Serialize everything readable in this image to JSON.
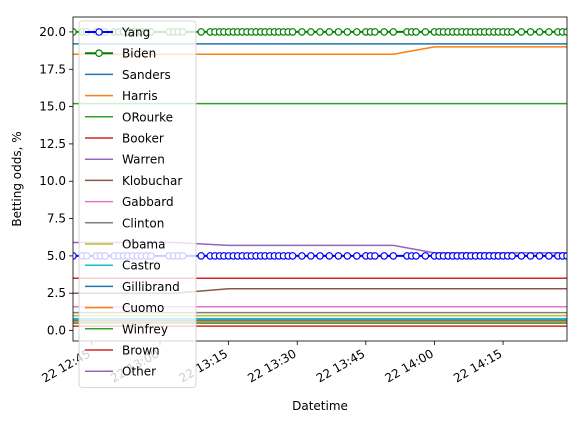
{
  "chart_data": {
    "type": "line",
    "xlabel": "Datetime",
    "ylabel": "Betting odds, %",
    "ylim": [
      -0.7,
      21
    ],
    "xlim": [
      "2019-xx-22 12:41",
      "2019-xx-22 14:30"
    ],
    "x_ticks": [
      {
        "t": 12.75,
        "label": "22 12:45"
      },
      {
        "t": 13.0,
        "label": "22 13:00"
      },
      {
        "t": 13.25,
        "label": "22 13:15"
      },
      {
        "t": 13.5,
        "label": "22 13:30"
      },
      {
        "t": 13.75,
        "label": "22 13:45"
      },
      {
        "t": 14.0,
        "label": "22 14:00"
      },
      {
        "t": 14.25,
        "label": "22 14:15"
      }
    ],
    "y_ticks": [
      "0.0",
      "2.5",
      "5.0",
      "7.5",
      "10.0",
      "12.5",
      "15.0",
      "17.5",
      "20.0"
    ],
    "legend_position": "upper-left",
    "markers_t": [
      12.683,
      12.717,
      12.733,
      12.767,
      12.783,
      12.8,
      12.833,
      12.85,
      12.867,
      12.883,
      12.9,
      12.917,
      12.933,
      12.95,
      12.967,
      13.033,
      13.05,
      13.067,
      13.083,
      13.15,
      13.183,
      13.2,
      13.217,
      13.233,
      13.25,
      13.267,
      13.283,
      13.3,
      13.317,
      13.333,
      13.35,
      13.367,
      13.383,
      13.4,
      13.417,
      13.433,
      13.45,
      13.467,
      13.483,
      13.517,
      13.55,
      13.583,
      13.617,
      13.65,
      13.683,
      13.717,
      13.75,
      13.767,
      13.783,
      13.817,
      13.85,
      13.9,
      13.917,
      13.933,
      13.967,
      14.0,
      14.017,
      14.033,
      14.05,
      14.067,
      14.083,
      14.1,
      14.117,
      14.133,
      14.15,
      14.167,
      14.183,
      14.2,
      14.217,
      14.233,
      14.25,
      14.267,
      14.283,
      14.317,
      14.35,
      14.383,
      14.417,
      14.45,
      14.467,
      14.483
    ],
    "series": [
      {
        "name": "Yang",
        "color": "#0000ff",
        "lw": 2,
        "marker": true,
        "points": [
          [
            12.683,
            5.0
          ],
          [
            14.483,
            5.0
          ]
        ]
      },
      {
        "name": "Biden",
        "color": "#008000",
        "lw": 2,
        "marker": true,
        "points": [
          [
            12.683,
            20.0
          ],
          [
            14.483,
            20.0
          ]
        ]
      },
      {
        "name": "Sanders",
        "color": "#1f77b4",
        "lw": 1.5,
        "points": [
          [
            12.683,
            19.2
          ],
          [
            14.483,
            19.2
          ]
        ]
      },
      {
        "name": "Harris",
        "color": "#ff7f0e",
        "lw": 1.5,
        "points": [
          [
            12.683,
            18.5
          ],
          [
            13.85,
            18.5
          ],
          [
            14.0,
            19.0
          ],
          [
            14.483,
            19.0
          ]
        ]
      },
      {
        "name": "ORourke",
        "color": "#2ca02c",
        "lw": 1.5,
        "points": [
          [
            12.683,
            15.2
          ],
          [
            14.483,
            15.2
          ]
        ]
      },
      {
        "name": "Booker",
        "color": "#d62728",
        "lw": 1.5,
        "points": [
          [
            12.683,
            3.5
          ],
          [
            14.483,
            3.5
          ]
        ]
      },
      {
        "name": "Warren",
        "color": "#9467bd",
        "lw": 1.5,
        "points": [
          [
            12.683,
            5.9
          ],
          [
            13.05,
            5.9
          ],
          [
            13.25,
            5.7
          ],
          [
            13.85,
            5.7
          ],
          [
            14.0,
            5.2
          ],
          [
            14.483,
            5.2
          ]
        ]
      },
      {
        "name": "Klobuchar",
        "color": "#8c564b",
        "lw": 1.5,
        "points": [
          [
            12.683,
            2.5
          ],
          [
            13.05,
            2.5
          ],
          [
            13.25,
            2.8
          ],
          [
            14.483,
            2.8
          ]
        ]
      },
      {
        "name": "Gabbard",
        "color": "#e377c2",
        "lw": 1.5,
        "points": [
          [
            12.683,
            1.6
          ],
          [
            14.483,
            1.6
          ]
        ]
      },
      {
        "name": "Clinton",
        "color": "#7f7f7f",
        "lw": 1.5,
        "points": [
          [
            12.683,
            1.2
          ],
          [
            14.483,
            1.2
          ]
        ]
      },
      {
        "name": "Obama",
        "color": "#bcbd22",
        "lw": 1.5,
        "points": [
          [
            12.683,
            1.0
          ],
          [
            14.483,
            1.0
          ]
        ]
      },
      {
        "name": "Castro",
        "color": "#17becf",
        "lw": 1.5,
        "points": [
          [
            12.683,
            0.8
          ],
          [
            14.483,
            0.8
          ]
        ]
      },
      {
        "name": "Gillibrand",
        "color": "#1f77b4",
        "lw": 1.5,
        "points": [
          [
            12.683,
            0.7
          ],
          [
            14.483,
            0.7
          ]
        ]
      },
      {
        "name": "Cuomo",
        "color": "#ff7f0e",
        "lw": 1.5,
        "points": [
          [
            12.683,
            0.6
          ],
          [
            14.483,
            0.6
          ]
        ]
      },
      {
        "name": "Winfrey",
        "color": "#2ca02c",
        "lw": 1.5,
        "points": [
          [
            12.683,
            0.5
          ],
          [
            14.483,
            0.5
          ]
        ]
      },
      {
        "name": "Brown",
        "color": "#d62728",
        "lw": 1.5,
        "points": [
          [
            12.683,
            0.3
          ],
          [
            14.483,
            0.3
          ]
        ]
      },
      {
        "name": "Other",
        "color": "#9467bd",
        "lw": 1.5,
        "points": [
          [
            12.683,
            5.0
          ],
          [
            14.483,
            5.0
          ]
        ]
      }
    ]
  }
}
